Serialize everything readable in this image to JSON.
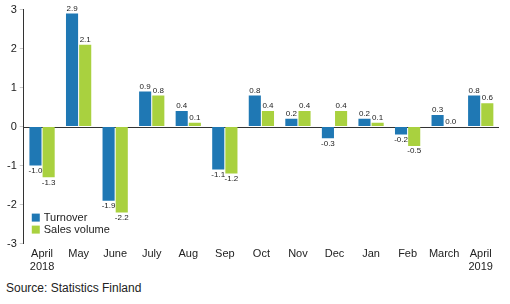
{
  "chart_data": {
    "type": "bar",
    "categories": [
      [
        "April",
        "2018"
      ],
      "May",
      "June",
      "July",
      "Aug",
      "Sep",
      "Oct",
      "Nov",
      "Dec",
      "Jan",
      "Feb",
      "March",
      [
        "April",
        "2019"
      ]
    ],
    "series": [
      {
        "name": "Turnover",
        "color": "#1f78b4",
        "values": [
          -1.0,
          2.9,
          -1.9,
          0.9,
          0.4,
          -1.1,
          0.8,
          0.2,
          -0.3,
          0.2,
          -0.2,
          0.3,
          0.8
        ],
        "value_labels": [
          "-1.0",
          "2.9",
          "-1.9",
          "0.9",
          "0.4",
          "-1.1",
          "0.8",
          "0.2",
          "-0.3",
          "0.2",
          "-0.2",
          "0.3",
          "0.8"
        ]
      },
      {
        "name": "Sales volume",
        "color": "#a9d13f",
        "values": [
          -1.3,
          2.1,
          -2.2,
          0.8,
          0.1,
          -1.2,
          0.4,
          0.4,
          0.4,
          0.1,
          -0.5,
          0.0,
          0.6
        ],
        "value_labels": [
          "-1.3",
          "2.1",
          "-2.2",
          "0.8",
          "0.1",
          "-1.2",
          "0.4",
          "0.4",
          "0.4",
          "0.1",
          "-0.5",
          "0.0",
          "0.6"
        ]
      }
    ],
    "ylim": [
      -3,
      3
    ],
    "yticks": [
      -3,
      -2,
      -1,
      0,
      1,
      2,
      3
    ],
    "grid": false,
    "legend": "lower left",
    "data_labels": true,
    "annotations": [
      "Source: Statistics Finland"
    ]
  }
}
